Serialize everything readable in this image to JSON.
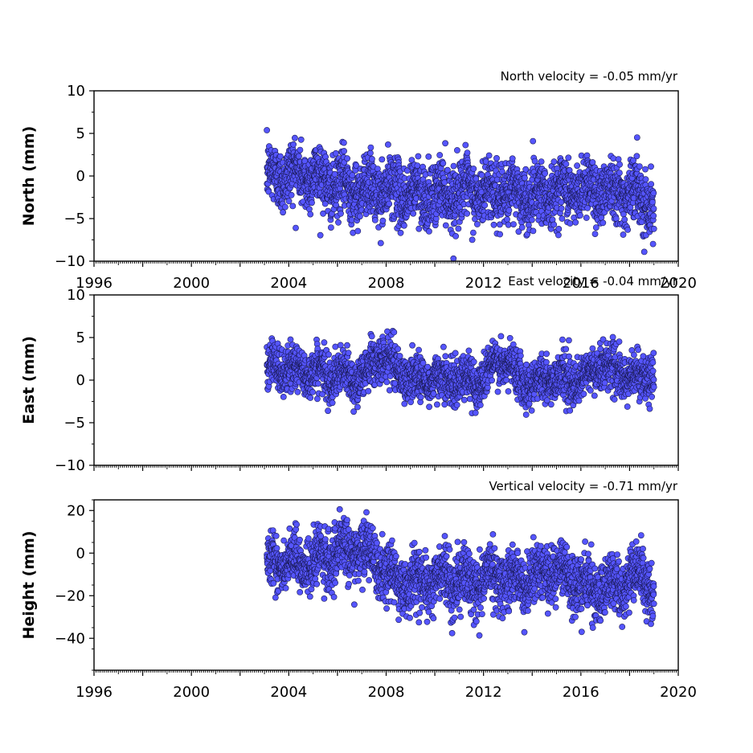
{
  "chart_data": [
    {
      "type": "scatter",
      "id": "north",
      "title": "North velocity = -0.05 mm/yr",
      "ylabel": "North (mm)",
      "xlim": [
        1996,
        2020
      ],
      "ylim": [
        -10,
        10
      ],
      "yticks": [
        -10,
        -5,
        0,
        5,
        10
      ],
      "ytick_labels": [
        "−10",
        "−5",
        "0",
        "5",
        "10"
      ],
      "xticks": [
        1996,
        1998,
        2000,
        2002,
        2004,
        2006,
        2008,
        2010,
        2012,
        2014,
        2016,
        2018,
        2020
      ],
      "xtick_labels": [
        "1996",
        "2000",
        "2004",
        "2008",
        "2012",
        "2016",
        "2020"
      ],
      "marker_color": "#5555ff",
      "series": [
        {
          "x_range": [
            2003.1,
            2019.0
          ],
          "x": [
            2003.2,
            2004.0,
            2005.0,
            2006.0,
            2007.0,
            2008.0,
            2009.0,
            2010.0,
            2011.0,
            2012.0,
            2013.0,
            2014.0,
            2015.0,
            2016.0,
            2017.0,
            2018.0,
            2019.0
          ],
          "mean": [
            -0.2,
            0.3,
            0.0,
            -1.2,
            -1.5,
            -1.8,
            -2.0,
            -2.2,
            -1.7,
            -2.0,
            -2.0,
            -2.3,
            -1.8,
            -1.5,
            -1.5,
            -1.8,
            -3.0
          ],
          "spread": 1.8,
          "n_points": 2600
        }
      ]
    },
    {
      "type": "scatter",
      "id": "east",
      "title": "East velocity = -0.04 mm/yr",
      "ylabel": "East (mm)",
      "xlim": [
        1996,
        2020
      ],
      "ylim": [
        -10,
        10
      ],
      "yticks": [
        -10,
        -5,
        0,
        5,
        10
      ],
      "ytick_labels": [
        "−10",
        "−5",
        "0",
        "5",
        "10"
      ],
      "xticks": [
        1996,
        1998,
        2000,
        2002,
        2004,
        2006,
        2008,
        2010,
        2012,
        2014,
        2016,
        2018,
        2020
      ],
      "xtick_labels": [],
      "marker_color": "#5555ff",
      "series": [
        {
          "x_range": [
            2003.1,
            2019.0
          ],
          "x": [
            2003.2,
            2004.0,
            2005.0,
            2006.0,
            2007.0,
            2007.8,
            2009.0,
            2010.0,
            2011.0,
            2012.0,
            2012.6,
            2014.0,
            2015.0,
            2016.0,
            2016.8,
            2018.0,
            2019.0
          ],
          "mean": [
            1.5,
            1.2,
            1.0,
            0.5,
            0.3,
            3.0,
            0.0,
            0.2,
            0.0,
            0.0,
            2.5,
            -0.5,
            0.5,
            -0.5,
            2.0,
            0.3,
            0.5
          ],
          "spread": 1.3,
          "n_points": 2600
        }
      ]
    },
    {
      "type": "scatter",
      "id": "height",
      "title": "Vertical velocity = -0.71 mm/yr",
      "ylabel": "Height (mm)",
      "xlim": [
        1996,
        2020
      ],
      "ylim": [
        -55,
        25
      ],
      "yticks": [
        -40,
        -20,
        0,
        20
      ],
      "ytick_labels": [
        "−40",
        "−20",
        "0",
        "20"
      ],
      "xticks": [
        1996,
        1998,
        2000,
        2002,
        2004,
        2006,
        2008,
        2010,
        2012,
        2014,
        2016,
        2018,
        2020
      ],
      "xtick_labels": [
        "1996",
        "2000",
        "2004",
        "2008",
        "2012",
        "2016",
        "2020"
      ],
      "marker_color": "#5555ff",
      "series": [
        {
          "x_range": [
            2003.1,
            2019.0
          ],
          "x": [
            2003.2,
            2004.0,
            2005.0,
            2006.0,
            2007.0,
            2007.6,
            2008.5,
            2009.5,
            2010.5,
            2011.5,
            2012.5,
            2013.5,
            2014.5,
            2015.5,
            2016.5,
            2017.5,
            2018.5,
            2019.0
          ],
          "mean": [
            -3,
            -6,
            -4,
            0,
            2,
            -5,
            -14,
            -13,
            -12,
            -14,
            -10,
            -14,
            -8,
            -10,
            -18,
            -15,
            -10,
            -20
          ],
          "spread": 6.5,
          "n_points": 2600
        }
      ]
    }
  ]
}
